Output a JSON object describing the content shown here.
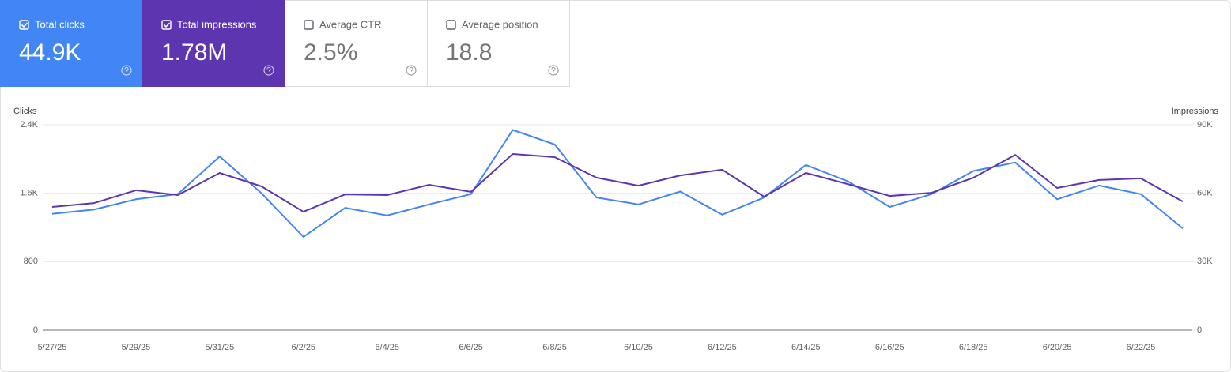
{
  "cards": [
    {
      "label": "Total clicks",
      "value": "44.9K",
      "checked": true
    },
    {
      "label": "Total impressions",
      "value": "1.78M",
      "checked": true
    },
    {
      "label": "Average CTR",
      "value": "2.5%",
      "checked": false
    },
    {
      "label": "Average position",
      "value": "18.8",
      "checked": false
    }
  ],
  "chart_data": {
    "type": "line",
    "y_label": "Clicks",
    "y2_label": "Impressions",
    "categories": [
      "5/27/25",
      null,
      "5/29/25",
      null,
      "5/31/25",
      null,
      "6/2/25",
      null,
      "6/4/25",
      null,
      "6/6/25",
      null,
      "6/8/25",
      null,
      "6/10/25",
      null,
      "6/12/25",
      null,
      "6/14/25",
      null,
      "6/16/25",
      null,
      "6/18/25",
      null,
      "6/20/25",
      null,
      "6/22/25",
      null
    ],
    "series": [
      {
        "name": "Clicks",
        "color": "#4285f4",
        "values": [
          1360,
          1410,
          1530,
          1590,
          2030,
          1600,
          1090,
          1430,
          1340,
          1470,
          1590,
          2340,
          2170,
          1550,
          1470,
          1620,
          1350,
          1550,
          1930,
          1740,
          1440,
          1590,
          1860,
          1960,
          1530,
          1690,
          1590,
          1190
        ]
      },
      {
        "name": "Impressions",
        "color": "#5e35b1",
        "axis": "y2",
        "values": [
          54000,
          55700,
          61300,
          59200,
          68900,
          63000,
          51900,
          59500,
          59200,
          63700,
          60600,
          77200,
          75800,
          66800,
          63300,
          67800,
          70300,
          58500,
          68900,
          64000,
          58800,
          60200,
          66800,
          76800,
          62300,
          65800,
          66500,
          56400
        ]
      }
    ],
    "ylim": [
      0,
      2400
    ],
    "yticks": [
      0,
      800,
      {
        "value": 1600,
        "label": "1.6K"
      },
      {
        "value": 2400,
        "label": "2.4K"
      }
    ],
    "y2lim": [
      0,
      90000
    ],
    "y2ticks": [
      0,
      {
        "value": 30000,
        "label": "30K"
      },
      {
        "value": 60000,
        "label": "60K"
      },
      {
        "value": 90000,
        "label": "90K"
      }
    ],
    "grid": true
  }
}
